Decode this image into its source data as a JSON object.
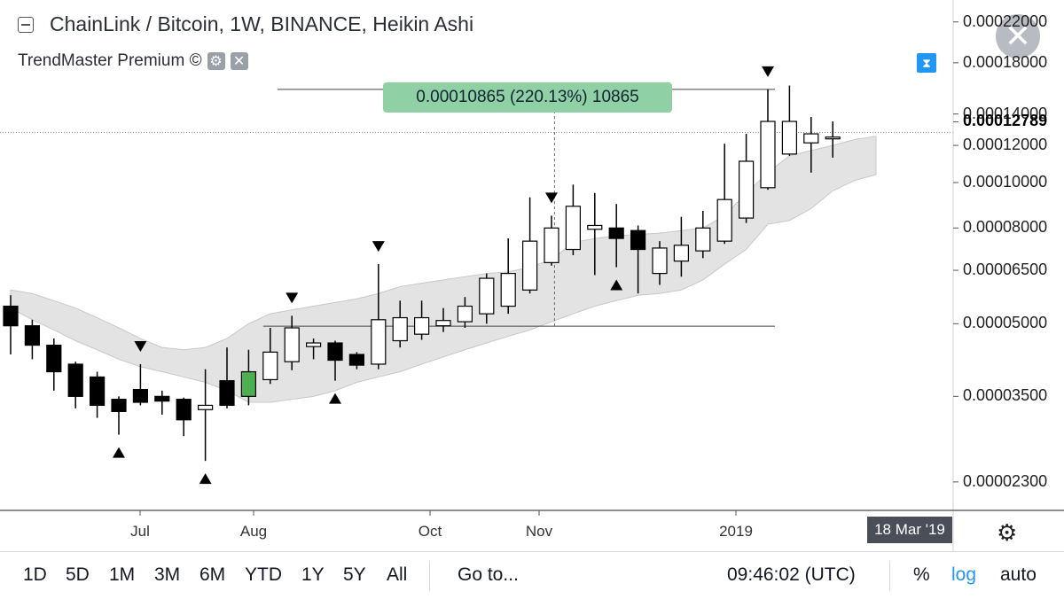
{
  "header": {
    "title": "ChainLink / Bitcoin, 1W, BINANCE, Heikin Ashi",
    "indicator": "TrendMaster Premium ©"
  },
  "measure_label": "0.00010865 (220.13%) 10865",
  "price_axis": {
    "labels": [
      "0.00022000",
      "0.00018000",
      "0.00014000",
      "0.00012000",
      "0.00010000",
      "0.00008000",
      "0.00006500",
      "0.00005000",
      "0.00003500",
      "0.00002300"
    ],
    "current_price": "0.00012789"
  },
  "time_axis": {
    "labels": [
      "Jul",
      "Aug",
      "Oct",
      "Nov",
      "2019"
    ],
    "crosshair_date": "18 Mar '19"
  },
  "toolbar": {
    "ranges": [
      "1D",
      "5D",
      "1M",
      "3M",
      "6M",
      "YTD",
      "1Y",
      "5Y",
      "All"
    ],
    "goto": "Go to...",
    "clock": "09:46:02 (UTC)",
    "percent": "%",
    "log": "log",
    "auto": "auto"
  },
  "colors": {
    "bull": "#ffffff",
    "bear": "#000000",
    "highlight": "#4caf50",
    "band": "#e3e3e3",
    "accent": "#2196f3"
  },
  "chart_data": {
    "type": "candlestick",
    "title": "ChainLink / Bitcoin, 1W, BINANCE, Heikin Ashi",
    "scale": "log",
    "ylim": [
      2e-05,
      0.000245
    ],
    "candles": [
      {
        "o": 5.45e-05,
        "h": 5.75e-05,
        "l": 4.3e-05,
        "c": 4.95e-05
      },
      {
        "o": 4.95e-05,
        "h": 5.1e-05,
        "l": 4.2e-05,
        "c": 4.5e-05
      },
      {
        "o": 4.5e-05,
        "h": 4.65e-05,
        "l": 3.6e-05,
        "c": 3.95e-05
      },
      {
        "o": 4.1e-05,
        "h": 4.15e-05,
        "l": 3.3e-05,
        "c": 3.5e-05
      },
      {
        "o": 3.85e-05,
        "h": 3.95e-05,
        "l": 3.15e-05,
        "c": 3.35e-05
      },
      {
        "o": 3.45e-05,
        "h": 3.5e-05,
        "l": 2.9e-05,
        "c": 3.25e-05
      },
      {
        "o": 3.62e-05,
        "h": 4.1e-05,
        "l": 3.35e-05,
        "c": 3.4e-05
      },
      {
        "o": 3.5e-05,
        "h": 3.6e-05,
        "l": 3.2e-05,
        "c": 3.42e-05
      },
      {
        "o": 3.45e-05,
        "h": 3.48e-05,
        "l": 2.88e-05,
        "c": 3.12e-05
      },
      {
        "o": 3.28e-05,
        "h": 4e-05,
        "l": 2.55e-05,
        "c": 3.35e-05
      },
      {
        "o": 3.78e-05,
        "h": 4.45e-05,
        "l": 3.3e-05,
        "c": 3.35e-05
      },
      {
        "o": 3.95e-05,
        "h": 4.4e-05,
        "l": 3.35e-05,
        "c": 3.5e-05
      },
      {
        "o": 3.8e-05,
        "h": 4.9e-05,
        "l": 3.72e-05,
        "c": 4.35e-05
      },
      {
        "o": 4.15e-05,
        "h": 5.2e-05,
        "l": 3.98e-05,
        "c": 4.9e-05
      },
      {
        "o": 4.47e-05,
        "h": 4.65e-05,
        "l": 4.2e-05,
        "c": 4.55e-05
      },
      {
        "o": 4.55e-05,
        "h": 4.6e-05,
        "l": 3.78e-05,
        "c": 4.18e-05
      },
      {
        "o": 4.3e-05,
        "h": 4.35e-05,
        "l": 4e-05,
        "c": 4.08e-05
      },
      {
        "o": 4.1e-05,
        "h": 6.7e-05,
        "l": 4e-05,
        "c": 5.1e-05
      },
      {
        "o": 4.6e-05,
        "h": 5.6e-05,
        "l": 4.45e-05,
        "c": 5.15e-05
      },
      {
        "o": 4.75e-05,
        "h": 5.6e-05,
        "l": 4.62e-05,
        "c": 5.15e-05
      },
      {
        "o": 4.95e-05,
        "h": 5.4e-05,
        "l": 4.8e-05,
        "c": 5.08e-05
      },
      {
        "o": 5.05e-05,
        "h": 5.7e-05,
        "l": 4.9e-05,
        "c": 5.45e-05
      },
      {
        "o": 5.25e-05,
        "h": 6.4e-05,
        "l": 5e-05,
        "c": 6.25e-05
      },
      {
        "o": 5.45e-05,
        "h": 7.6e-05,
        "l": 5.25e-05,
        "c": 6.4e-05
      },
      {
        "o": 5.9e-05,
        "h": 9.3e-05,
        "l": 5.8e-05,
        "c": 7.5e-05
      },
      {
        "o": 6.75e-05,
        "h": 8.5e-05,
        "l": 6.65e-05,
        "c": 8e-05
      },
      {
        "o": 7.2e-05,
        "h": 9.9e-05,
        "l": 7e-05,
        "c": 8.9e-05
      },
      {
        "o": 7.95e-05,
        "h": 9.5e-05,
        "l": 6.35e-05,
        "c": 8.1e-05
      },
      {
        "o": 8e-05,
        "h": 9e-05,
        "l": 6.6e-05,
        "c": 7.6e-05
      },
      {
        "o": 7.9e-05,
        "h": 8.1e-05,
        "l": 5.8e-05,
        "c": 7.2e-05
      },
      {
        "o": 6.4e-05,
        "h": 7.5e-05,
        "l": 6.05e-05,
        "c": 7.25e-05
      },
      {
        "o": 6.8e-05,
        "h": 8.45e-05,
        "l": 6.3e-05,
        "c": 7.35e-05
      },
      {
        "o": 7.15e-05,
        "h": 8.7e-05,
        "l": 6.9e-05,
        "c": 8e-05
      },
      {
        "o": 7.5e-05,
        "h": 0.000121,
        "l": 7.4e-05,
        "c": 9.2e-05
      },
      {
        "o": 8.4e-05,
        "h": 0.000127,
        "l": 8.2e-05,
        "c": 0.000111
      },
      {
        "o": 9.75e-05,
        "h": 0.000158,
        "l": 9.65e-05,
        "c": 0.000135
      },
      {
        "o": 0.000115,
        "h": 0.000161,
        "l": 0.000114,
        "c": 0.000135
      },
      {
        "o": 0.0001215,
        "h": 0.000138,
        "l": 0.000105,
        "c": 0.000127
      },
      {
        "o": 0.0001245,
        "h": 0.000135,
        "l": 0.000113,
        "c": 0.000125
      }
    ],
    "highlight_index": 11,
    "band_upper": [
      5.9e-05,
      5.8e-05,
      5.6e-05,
      5.4e-05,
      5.15e-05,
      4.9e-05,
      4.65e-05,
      4.45e-05,
      4.4e-05,
      4.45e-05,
      4.65e-05,
      5e-05,
      5.25e-05,
      5.35e-05,
      5.45e-05,
      5.55e-05,
      5.65e-05,
      5.8e-05,
      6e-05,
      6.1e-05,
      6.2e-05,
      6.3e-05,
      6.4e-05,
      6.45e-05,
      6.6e-05,
      6.85e-05,
      7.45e-05,
      7.6e-05,
      7.7e-05,
      7.75e-05,
      7.8e-05,
      7.9e-05,
      8e-05,
      8.5e-05,
      9.5e-05,
      0.000105,
      0.000114,
      0.000117,
      0.00012,
      0.0001235,
      0.0001255
    ],
    "band_lower": [
      5.4e-05,
      5.1e-05,
      4.85e-05,
      4.6e-05,
      4.4e-05,
      4.2e-05,
      4.05e-05,
      3.95e-05,
      3.85e-05,
      3.75e-05,
      3.6e-05,
      3.4e-05,
      3.4e-05,
      3.45e-05,
      3.5e-05,
      3.6e-05,
      3.75e-05,
      3.85e-05,
      3.95e-05,
      4.1e-05,
      4.25e-05,
      4.4e-05,
      4.55e-05,
      4.7e-05,
      4.85e-05,
      5.05e-05,
      5.25e-05,
      5.45e-05,
      5.6e-05,
      5.75e-05,
      5.8e-05,
      5.9e-05,
      6.2e-05,
      6.7e-05,
      7.2e-05,
      8.15e-05,
      8.3e-05,
      8.8e-05,
      9.6e-05,
      0.000101,
      0.000104
    ],
    "markers": [
      {
        "i": 6,
        "dir": "down"
      },
      {
        "i": 5,
        "dir": "up"
      },
      {
        "i": 9,
        "dir": "up"
      },
      {
        "i": 13,
        "dir": "down"
      },
      {
        "i": 15,
        "dir": "up"
      },
      {
        "i": 17,
        "dir": "down"
      },
      {
        "i": 25,
        "dir": "down"
      },
      {
        "i": 28,
        "dir": "up"
      },
      {
        "i": 35,
        "dir": "down"
      }
    ],
    "measure": {
      "from_index": 12,
      "to_index": 35,
      "from_price": 4.94e-05,
      "to_price": 0.000158
    },
    "current_price": 0.00012789
  }
}
